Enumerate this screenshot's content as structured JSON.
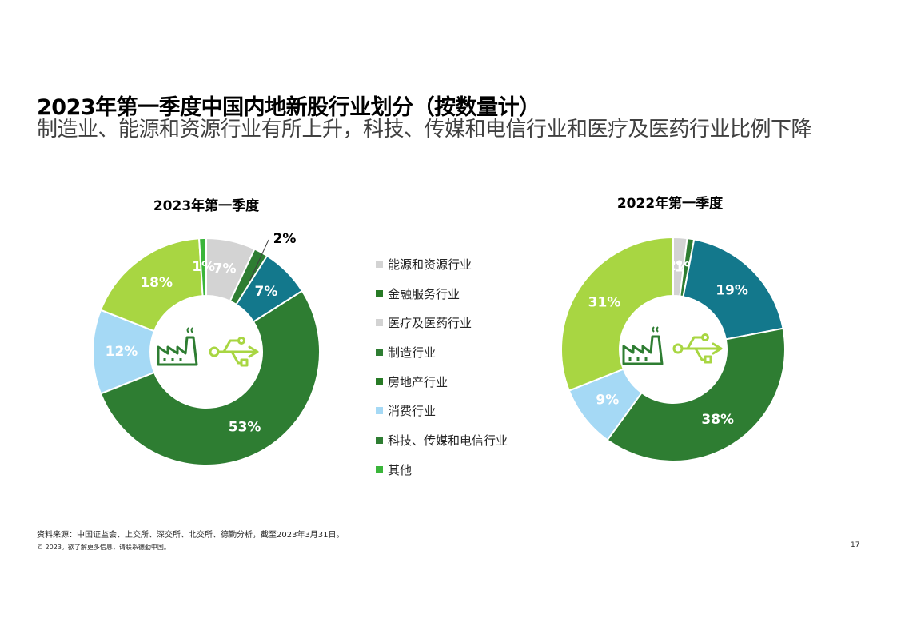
{
  "header": {
    "title": "2023年第一季度中国内地新股行业划分（按数量计）",
    "subtitle": "制造业、能源和资源行业有所上升，科技、传媒和电信行业和医疗及医药行业比例下降"
  },
  "legend": [
    {
      "label": "能源和资源行业",
      "color": "#d3d3d3"
    },
    {
      "label": "金融服务行业",
      "color": "#277a25"
    },
    {
      "label": "医疗及医药行业",
      "color": "#d3d3d3"
    },
    {
      "label": "制造行业",
      "color": "#2e7d32"
    },
    {
      "label": "房地产行业",
      "color": "#277a25"
    },
    {
      "label": "消费行业",
      "color": "#a5d9f5"
    },
    {
      "label": "科技、传媒和电信行业",
      "color": "#2e7d32"
    },
    {
      "label": "其他",
      "color": "#3ab53a"
    }
  ],
  "icons": {
    "center_left": "factory-icon",
    "center_right": "usb-icon"
  },
  "chart_data": [
    {
      "type": "pie",
      "title": "2023年第一季度",
      "slices": [
        {
          "value": 7,
          "label": "7%",
          "color": "#d3d3d3"
        },
        {
          "value": 2,
          "label": "2%",
          "color": "#2e7d32"
        },
        {
          "value": 7,
          "label": "7%",
          "color": "#13788c"
        },
        {
          "value": 53,
          "label": "53%",
          "color": "#2e7d32"
        },
        {
          "value": 12,
          "label": "12%",
          "color": "#a5d9f5"
        },
        {
          "value": 18,
          "label": "18%",
          "color": "#a8d642"
        },
        {
          "value": 1,
          "label": "1%",
          "color": "#3ab53a"
        }
      ]
    },
    {
      "type": "pie",
      "title": "2022年第一季度",
      "slices": [
        {
          "value": 2,
          "label": "2%",
          "color": "#d3d3d3"
        },
        {
          "value": 1,
          "label": "1%",
          "color": "#2e7d32"
        },
        {
          "value": 19,
          "label": "19%",
          "color": "#13788c"
        },
        {
          "value": 38,
          "label": "38%",
          "color": "#2e7d32"
        },
        {
          "value": 9,
          "label": "9%",
          "color": "#a5d9f5"
        },
        {
          "value": 31,
          "label": "31%",
          "color": "#a8d642"
        }
      ]
    }
  ],
  "footer": {
    "source": "资料来源：中国证监会、上交所、深交所、北交所、德勤分析，截至2023年3月31日。",
    "copyright": "© 2023。欲了解更多信息，请联系德勤中国。",
    "page_number": "17"
  }
}
